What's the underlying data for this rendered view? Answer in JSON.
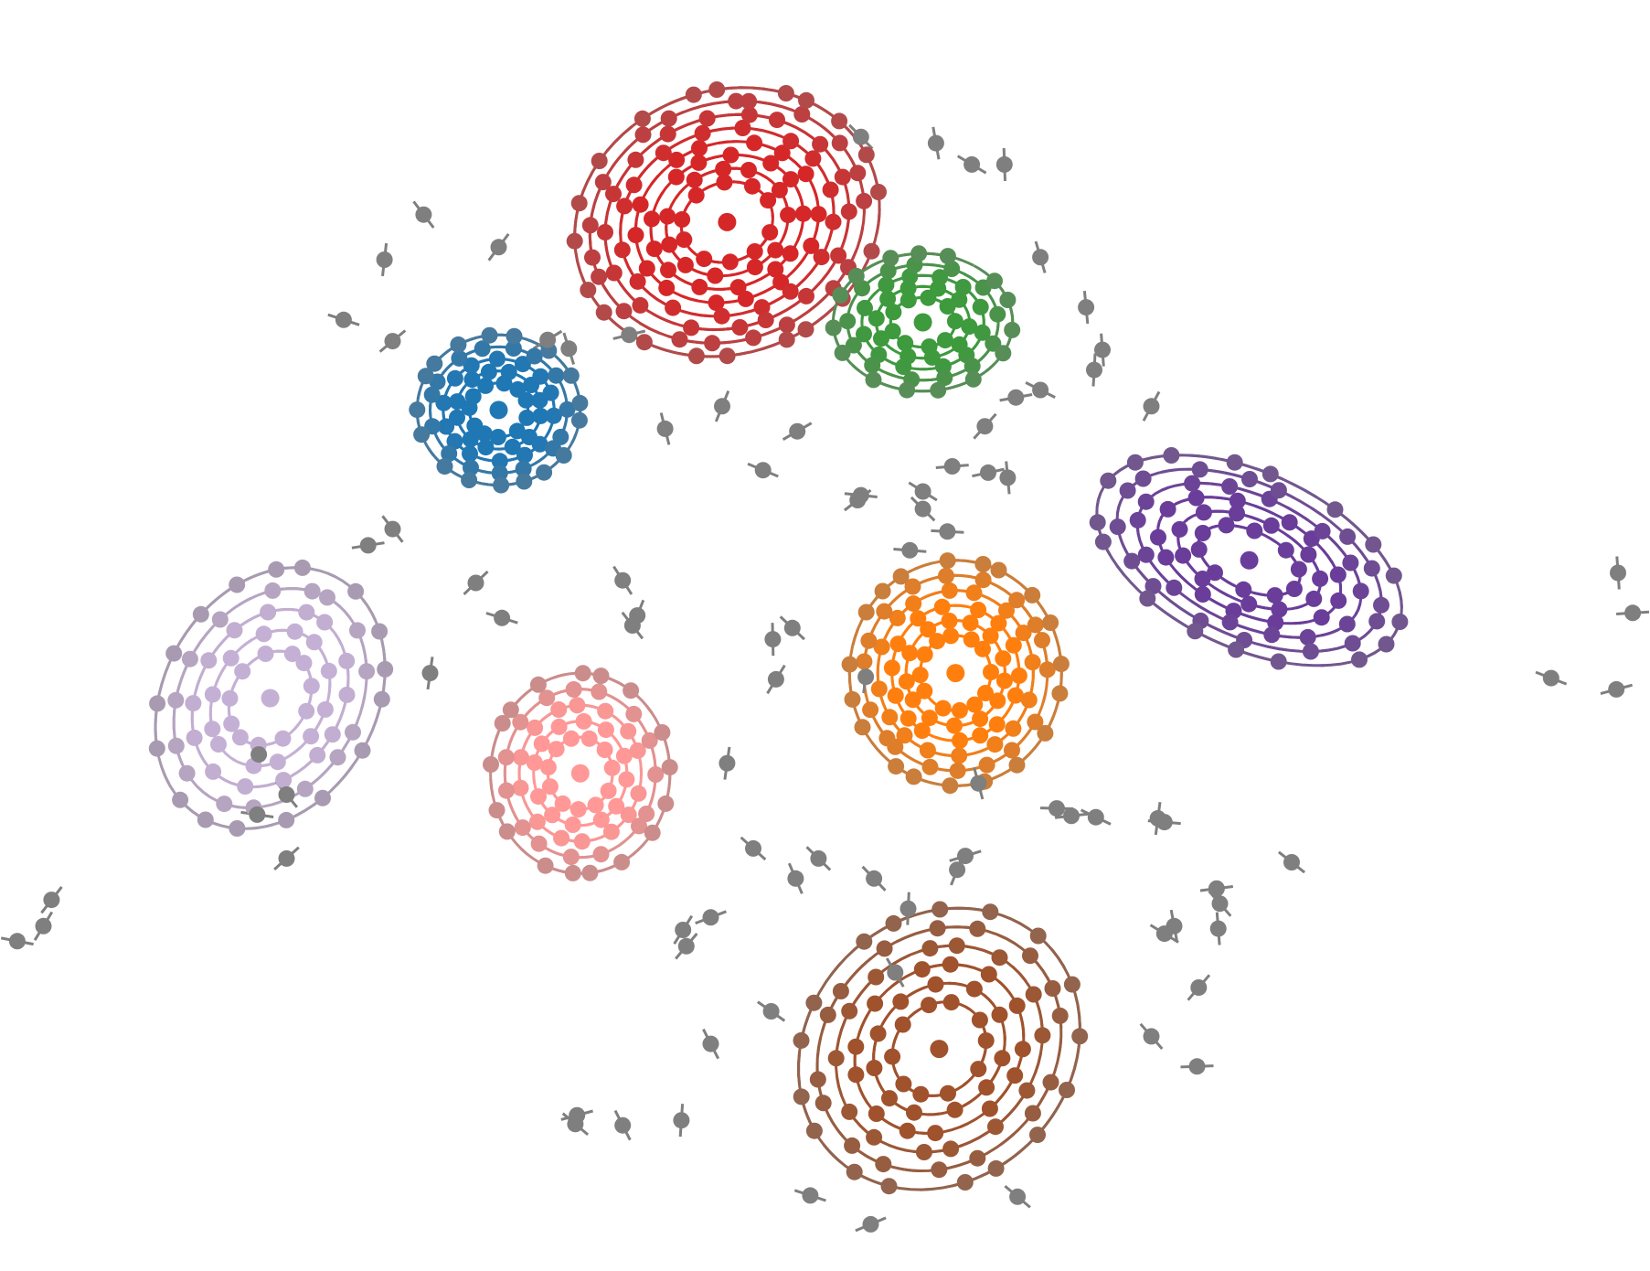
{
  "chart_data": {
    "type": "scatter",
    "description_free": true,
    "title": "",
    "xlabel": "",
    "ylabel": "",
    "axes_visible": false,
    "grid": false,
    "legend": "none",
    "xlim": [
      0,
      1
    ],
    "ylim": [
      0,
      1
    ],
    "clusters": [
      {
        "color": "#d62728",
        "center": [
          0.44,
          0.83
        ],
        "rx": 0.19,
        "ry": 0.21,
        "rings": 8,
        "dir": 1,
        "tilt": -20,
        "points_per_ring": 8
      },
      {
        "color": "#3d9a3d",
        "center": [
          0.56,
          0.75
        ],
        "rx": 0.11,
        "ry": 0.11,
        "rings": 5,
        "dir": -1,
        "tilt": 0,
        "points_per_ring": 7
      },
      {
        "color": "#1f77b4",
        "center": [
          0.3,
          0.68
        ],
        "rx": 0.1,
        "ry": 0.12,
        "rings": 5,
        "dir": 1,
        "tilt": 0,
        "points_per_ring": 9
      },
      {
        "color": "#ff7f0e",
        "center": [
          0.58,
          0.47
        ],
        "rx": 0.13,
        "ry": 0.18,
        "rings": 6,
        "dir": 1,
        "tilt": 0,
        "points_per_ring": 10
      },
      {
        "color": "#6a3d9a",
        "center": [
          0.76,
          0.56
        ],
        "rx": 0.2,
        "ry": 0.14,
        "rings": 6,
        "dir": 1,
        "tilt": 25,
        "points_per_ring": 8
      },
      {
        "color": "#c5b0d5",
        "center": [
          0.16,
          0.45
        ],
        "rx": 0.13,
        "ry": 0.22,
        "rings": 5,
        "dir": 1,
        "tilt": 30,
        "points_per_ring": 9
      },
      {
        "color": "#ff9896",
        "center": [
          0.35,
          0.39
        ],
        "rx": 0.11,
        "ry": 0.16,
        "rings": 5,
        "dir": 1,
        "tilt": 0,
        "points_per_ring": 9
      },
      {
        "color": "#a0522d",
        "center": [
          0.57,
          0.17
        ],
        "rx": 0.16,
        "ry": 0.24,
        "rings": 6,
        "dir": 1,
        "tilt": 45,
        "points_per_ring": 8
      }
    ],
    "outlier_color": "#7f7f7f",
    "outliers": [
      [
        0.254,
        0.836
      ],
      [
        0.3,
        0.81
      ],
      [
        0.23,
        0.8
      ],
      [
        0.205,
        0.752
      ],
      [
        0.235,
        0.735
      ],
      [
        0.38,
        0.74
      ],
      [
        0.343,
        0.729
      ],
      [
        0.33,
        0.736
      ],
      [
        0.402,
        0.665
      ],
      [
        0.437,
        0.683
      ],
      [
        0.522,
        0.898
      ],
      [
        0.568,
        0.893
      ],
      [
        0.59,
        0.876
      ],
      [
        0.61,
        0.876
      ],
      [
        0.632,
        0.802
      ],
      [
        0.66,
        0.762
      ],
      [
        0.617,
        0.69
      ],
      [
        0.598,
        0.667
      ],
      [
        0.6,
        0.63
      ],
      [
        0.522,
        0.612
      ],
      [
        0.483,
        0.663
      ],
      [
        0.578,
        0.635
      ],
      [
        0.56,
        0.615
      ],
      [
        0.462,
        0.632
      ],
      [
        0.575,
        0.583
      ],
      [
        0.52,
        0.608
      ],
      [
        0.552,
        0.568
      ],
      [
        0.612,
        0.626
      ],
      [
        0.235,
        0.585
      ],
      [
        0.22,
        0.572
      ],
      [
        0.286,
        0.542
      ],
      [
        0.302,
        0.514
      ],
      [
        0.376,
        0.544
      ],
      [
        0.382,
        0.508
      ],
      [
        0.385,
        0.516
      ],
      [
        0.258,
        0.47
      ],
      [
        0.153,
        0.405
      ],
      [
        0.17,
        0.373
      ],
      [
        0.152,
        0.357
      ],
      [
        0.17,
        0.322
      ],
      [
        0.468,
        0.497
      ],
      [
        0.48,
        0.506
      ],
      [
        0.525,
        0.467
      ],
      [
        0.47,
        0.465
      ],
      [
        0.44,
        0.398
      ],
      [
        0.456,
        0.33
      ],
      [
        0.496,
        0.322
      ],
      [
        0.482,
        0.306
      ],
      [
        0.53,
        0.306
      ],
      [
        0.581,
        0.313
      ],
      [
        0.666,
        0.355
      ],
      [
        0.708,
        0.351
      ],
      [
        0.786,
        0.319
      ],
      [
        0.742,
        0.286
      ],
      [
        0.74,
        0.298
      ],
      [
        0.714,
        0.268
      ],
      [
        0.708,
        0.262
      ],
      [
        0.741,
        0.266
      ],
      [
        0.729,
        0.219
      ],
      [
        0.7,
        0.18
      ],
      [
        0.728,
        0.156
      ],
      [
        0.986,
        0.55
      ],
      [
        0.995,
        0.518
      ],
      [
        0.985,
        0.457
      ],
      [
        0.945,
        0.466
      ],
      [
        0.026,
        0.289
      ],
      [
        0.021,
        0.268
      ],
      [
        0.005,
        0.256
      ],
      [
        0.43,
        0.275
      ],
      [
        0.413,
        0.265
      ],
      [
        0.415,
        0.252
      ],
      [
        0.348,
        0.117
      ],
      [
        0.376,
        0.109
      ],
      [
        0.412,
        0.113
      ],
      [
        0.347,
        0.11
      ],
      [
        0.491,
        0.053
      ],
      [
        0.528,
        0.03
      ],
      [
        0.618,
        0.052
      ],
      [
        0.43,
        0.174
      ],
      [
        0.467,
        0.2
      ],
      [
        0.543,
        0.231
      ],
      [
        0.551,
        0.282
      ],
      [
        0.586,
        0.324
      ],
      [
        0.651,
        0.356
      ],
      [
        0.642,
        0.362
      ],
      [
        0.594,
        0.382
      ],
      [
        0.704,
        0.354
      ],
      [
        0.56,
        0.601
      ],
      [
        0.632,
        0.696
      ],
      [
        0.67,
        0.728
      ],
      [
        0.7,
        0.683
      ],
      [
        0.665,
        0.712
      ]
    ]
  }
}
